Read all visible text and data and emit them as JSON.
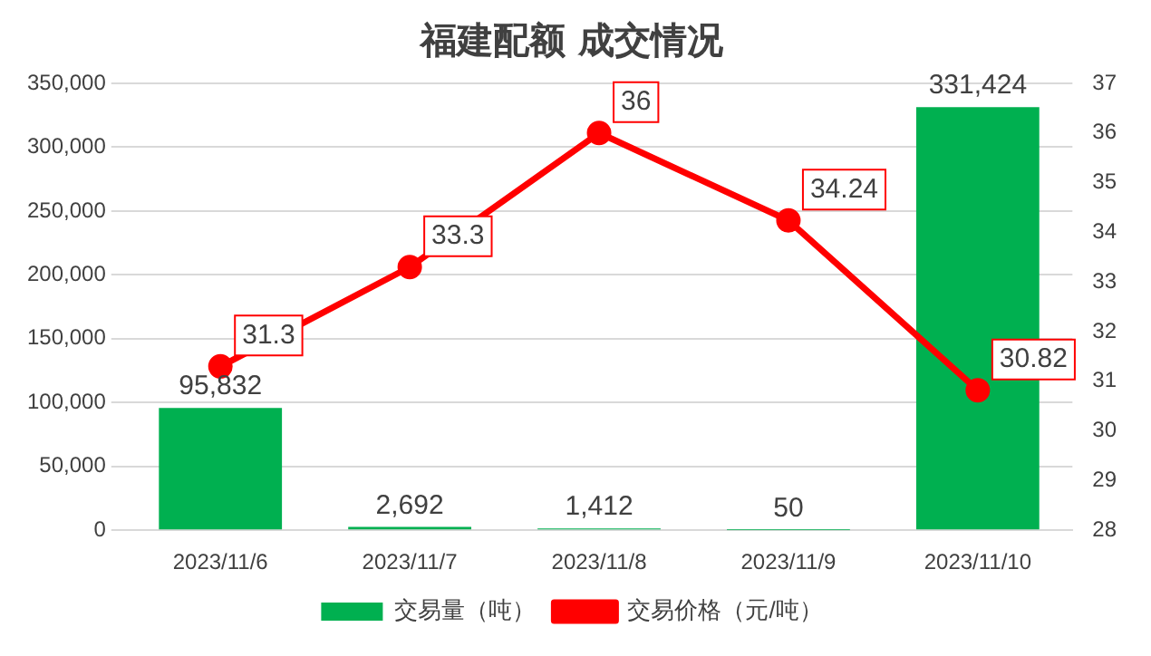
{
  "chart_data": {
    "type": "bar",
    "title": "福建配额 成交情况",
    "categories": [
      "2023/11/6",
      "2023/11/7",
      "2023/11/8",
      "2023/11/9",
      "2023/11/10"
    ],
    "series": [
      {
        "name": "交易量（吨）",
        "color": "#00b050",
        "values": [
          95832,
          2692,
          1412,
          50,
          331424
        ],
        "value_labels": [
          "95,832",
          "2,692",
          "1,412",
          "50",
          "331,424"
        ]
      },
      {
        "name": "交易价格（元/吨）",
        "type": "line",
        "axis": "y2",
        "color": "#ff0000",
        "values": [
          31.3,
          33.3,
          36,
          34.24,
          30.82
        ],
        "value_labels": [
          "31.3",
          "33.3",
          "36",
          "34.24",
          "30.82"
        ]
      }
    ],
    "ylim": [
      0,
      350000
    ],
    "yticks": [
      {
        "value": 0,
        "label": "0"
      },
      {
        "value": 50000,
        "label": "50,000"
      },
      {
        "value": 100000,
        "label": "100,000"
      },
      {
        "value": 150000,
        "label": "150,000"
      },
      {
        "value": 200000,
        "label": "200,000"
      },
      {
        "value": 250000,
        "label": "250,000"
      },
      {
        "value": 300000,
        "label": "300,000"
      },
      {
        "value": 350000,
        "label": "350,000"
      }
    ],
    "y2lim": [
      28,
      37
    ],
    "y2ticks": [
      28,
      29,
      30,
      31,
      32,
      33,
      34,
      35,
      36,
      37
    ],
    "grid": "y",
    "legend": "bottom",
    "marker": "circle",
    "line_style": "solid"
  }
}
